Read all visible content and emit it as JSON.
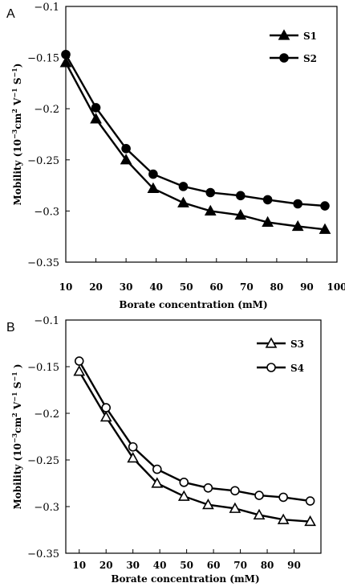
{
  "chart_data": [
    {
      "type": "line",
      "panel": "A",
      "xlabel": "Borate concentration (mM)",
      "ylabel_parts": [
        "Mobility (10",
        "−3",
        "cm",
        "2",
        " V",
        "−1",
        " S",
        "−1",
        ")"
      ],
      "xlim": [
        10,
        100
      ],
      "ylim": [
        -0.35,
        -0.1
      ],
      "xticks": [
        10,
        20,
        30,
        40,
        50,
        60,
        70,
        80,
        90,
        100
      ],
      "yticks": [
        -0.1,
        -0.15,
        -0.2,
        -0.25,
        -0.3,
        -0.35
      ],
      "xtick_labels": [
        "10",
        "20",
        "30",
        "40",
        "50",
        "60",
        "70",
        "80",
        "90",
        "100"
      ],
      "ytick_labels": [
        "−0.1",
        "−0.15",
        "−0.2",
        "−0.25",
        "−0.3",
        "−0.35"
      ],
      "legend_position": "top-right",
      "grid": false,
      "series": [
        {
          "name": "S1",
          "marker": "triangle",
          "filled": true,
          "x": [
            10,
            20,
            30,
            39,
            49,
            58,
            68,
            77,
            87,
            96
          ],
          "y": [
            -0.155,
            -0.21,
            -0.25,
            -0.278,
            -0.292,
            -0.3,
            -0.304,
            -0.311,
            -0.315,
            -0.318
          ]
        },
        {
          "name": "S2",
          "marker": "circle",
          "filled": true,
          "x": [
            10,
            20,
            30,
            39,
            49,
            58,
            68,
            77,
            87,
            96
          ],
          "y": [
            -0.147,
            -0.199,
            -0.239,
            -0.264,
            -0.276,
            -0.282,
            -0.285,
            -0.289,
            -0.293,
            -0.295
          ]
        }
      ]
    },
    {
      "type": "line",
      "panel": "B",
      "xlabel": "Borate concentration (mM)",
      "ylabel_parts": [
        "Mobility (10",
        "−3",
        "cm",
        "2",
        " V",
        "−1",
        " S",
        "−1",
        " )"
      ],
      "xlim": [
        5,
        100
      ],
      "ylim": [
        -0.35,
        -0.1
      ],
      "xticks": [
        10,
        20,
        30,
        40,
        50,
        60,
        70,
        80,
        90
      ],
      "yticks": [
        -0.1,
        -0.15,
        -0.2,
        -0.25,
        -0.3,
        -0.35
      ],
      "xtick_labels": [
        "10",
        "20",
        "30",
        "40",
        "50",
        "60",
        "70",
        "80",
        "90"
      ],
      "ytick_labels": [
        "−0.1",
        "−0.15",
        "−0.2",
        "−0.25",
        "−0.3",
        "−0.35"
      ],
      "legend_position": "top-right",
      "grid": false,
      "series": [
        {
          "name": "S3",
          "marker": "triangle",
          "filled": false,
          "x": [
            10,
            20,
            30,
            39,
            49,
            58,
            68,
            77,
            86,
            96
          ],
          "y": [
            -0.155,
            -0.204,
            -0.248,
            -0.275,
            -0.289,
            -0.298,
            -0.302,
            -0.309,
            -0.314,
            -0.316
          ]
        },
        {
          "name": "S4",
          "marker": "circle",
          "filled": false,
          "x": [
            10,
            20,
            30,
            39,
            49,
            58,
            68,
            77,
            86,
            96
          ],
          "y": [
            -0.144,
            -0.194,
            -0.236,
            -0.26,
            -0.274,
            -0.28,
            -0.283,
            -0.288,
            -0.29,
            -0.294
          ]
        }
      ]
    }
  ]
}
